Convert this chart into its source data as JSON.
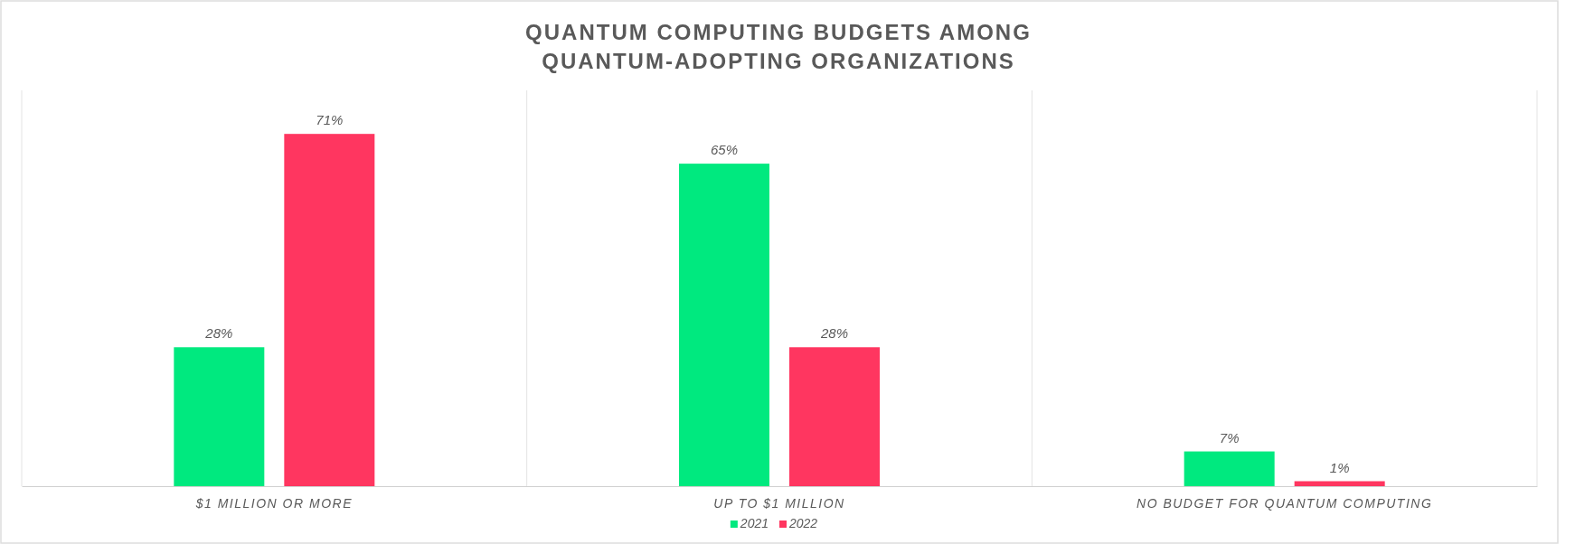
{
  "chart_data": {
    "type": "bar",
    "title": "QUANTUM COMPUTING BUDGETS AMONG\nQUANTUM-ADOPTING ORGANIZATIONS",
    "categories": [
      "$1 MILLION OR MORE",
      "UP TO $1 MILLION",
      "NO BUDGET FOR QUANTUM COMPUTING"
    ],
    "series": [
      {
        "name": "2021",
        "color": "#00e97f",
        "values": [
          28,
          65,
          7
        ],
        "value_labels": [
          "28%",
          "65%",
          "7%"
        ]
      },
      {
        "name": "2022",
        "color": "#ff3660",
        "values": [
          71,
          28,
          1
        ],
        "value_labels": [
          "71%",
          "28%",
          "1%"
        ]
      }
    ],
    "grid": "x",
    "legend": "bottom"
  }
}
